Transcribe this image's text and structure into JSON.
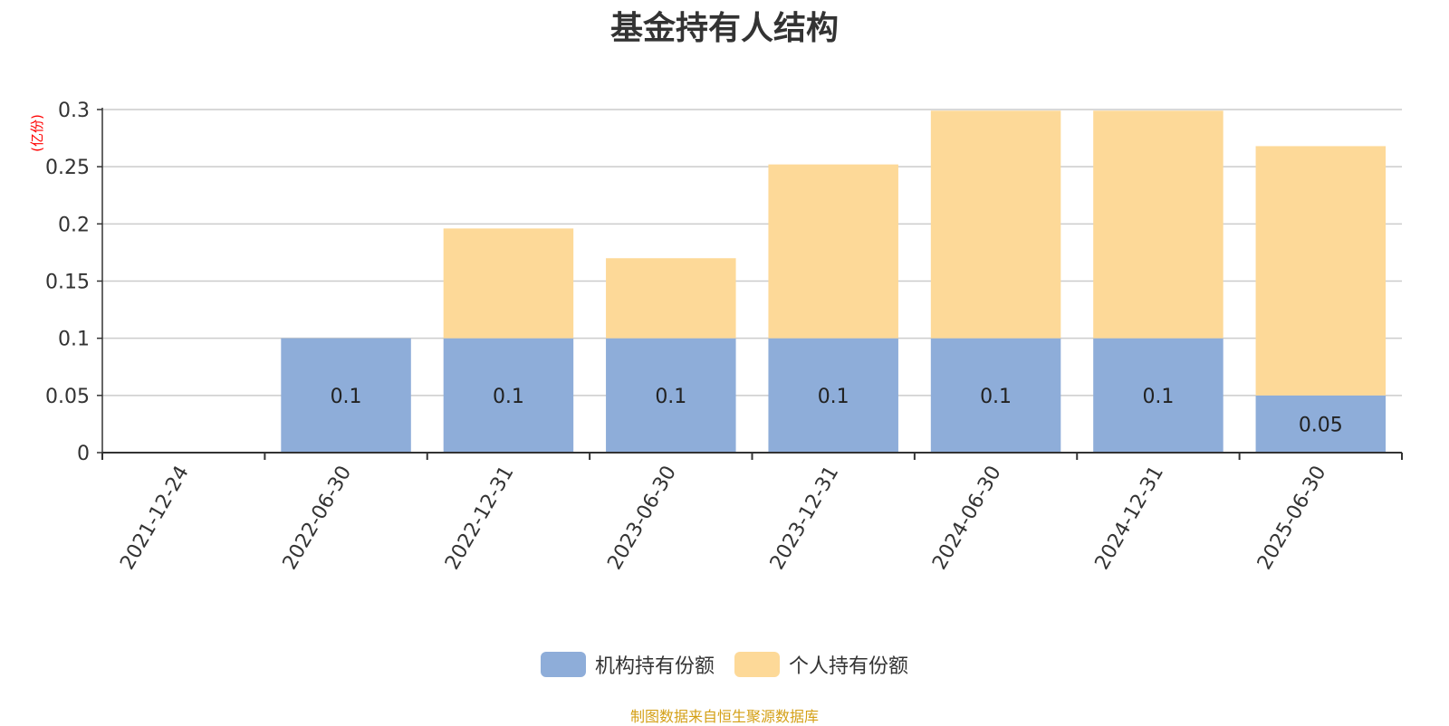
{
  "chart_data": {
    "type": "bar",
    "stacked": true,
    "title": "基金持有人结构",
    "ylabel": "(亿份)",
    "ylim": [
      0,
      0.3
    ],
    "yticks": [
      "0",
      "0.05",
      "0.1",
      "0.15",
      "0.2",
      "0.25",
      "0.3"
    ],
    "grid": true,
    "legend_position": "bottom",
    "categories": [
      "2021-12-24",
      "2022-06-30",
      "2022-12-31",
      "2023-06-30",
      "2023-12-31",
      "2024-06-30",
      "2024-12-31",
      "2025-06-30"
    ],
    "series": [
      {
        "name": "机构持有份额",
        "color": "#8eadd9",
        "values": [
          0,
          0.1,
          0.1,
          0.1,
          0.1,
          0.1,
          0.1,
          0.05
        ],
        "labels": [
          "",
          "0.1",
          "0.1",
          "0.1",
          "0.1",
          "0.1",
          "0.1",
          "0.05"
        ]
      },
      {
        "name": "个人持有份额",
        "color": "#fdd998",
        "values": [
          0,
          0,
          0.096,
          0.07,
          0.152,
          0.199,
          0.199,
          0.218
        ],
        "labels": [
          "",
          "",
          "",
          "",
          "",
          "",
          "",
          ""
        ]
      }
    ]
  },
  "legend": {
    "institution_label": "机构持有份额",
    "individual_label": "个人持有份额"
  },
  "source_note": "制图数据来自恒生聚源数据库",
  "colors": {
    "institution": "#8eadd9",
    "individual": "#fdd998",
    "source_text": "#d4a017",
    "ylabel_text": "#ff0000",
    "grid": "#cccccc",
    "axis": "#333333"
  }
}
